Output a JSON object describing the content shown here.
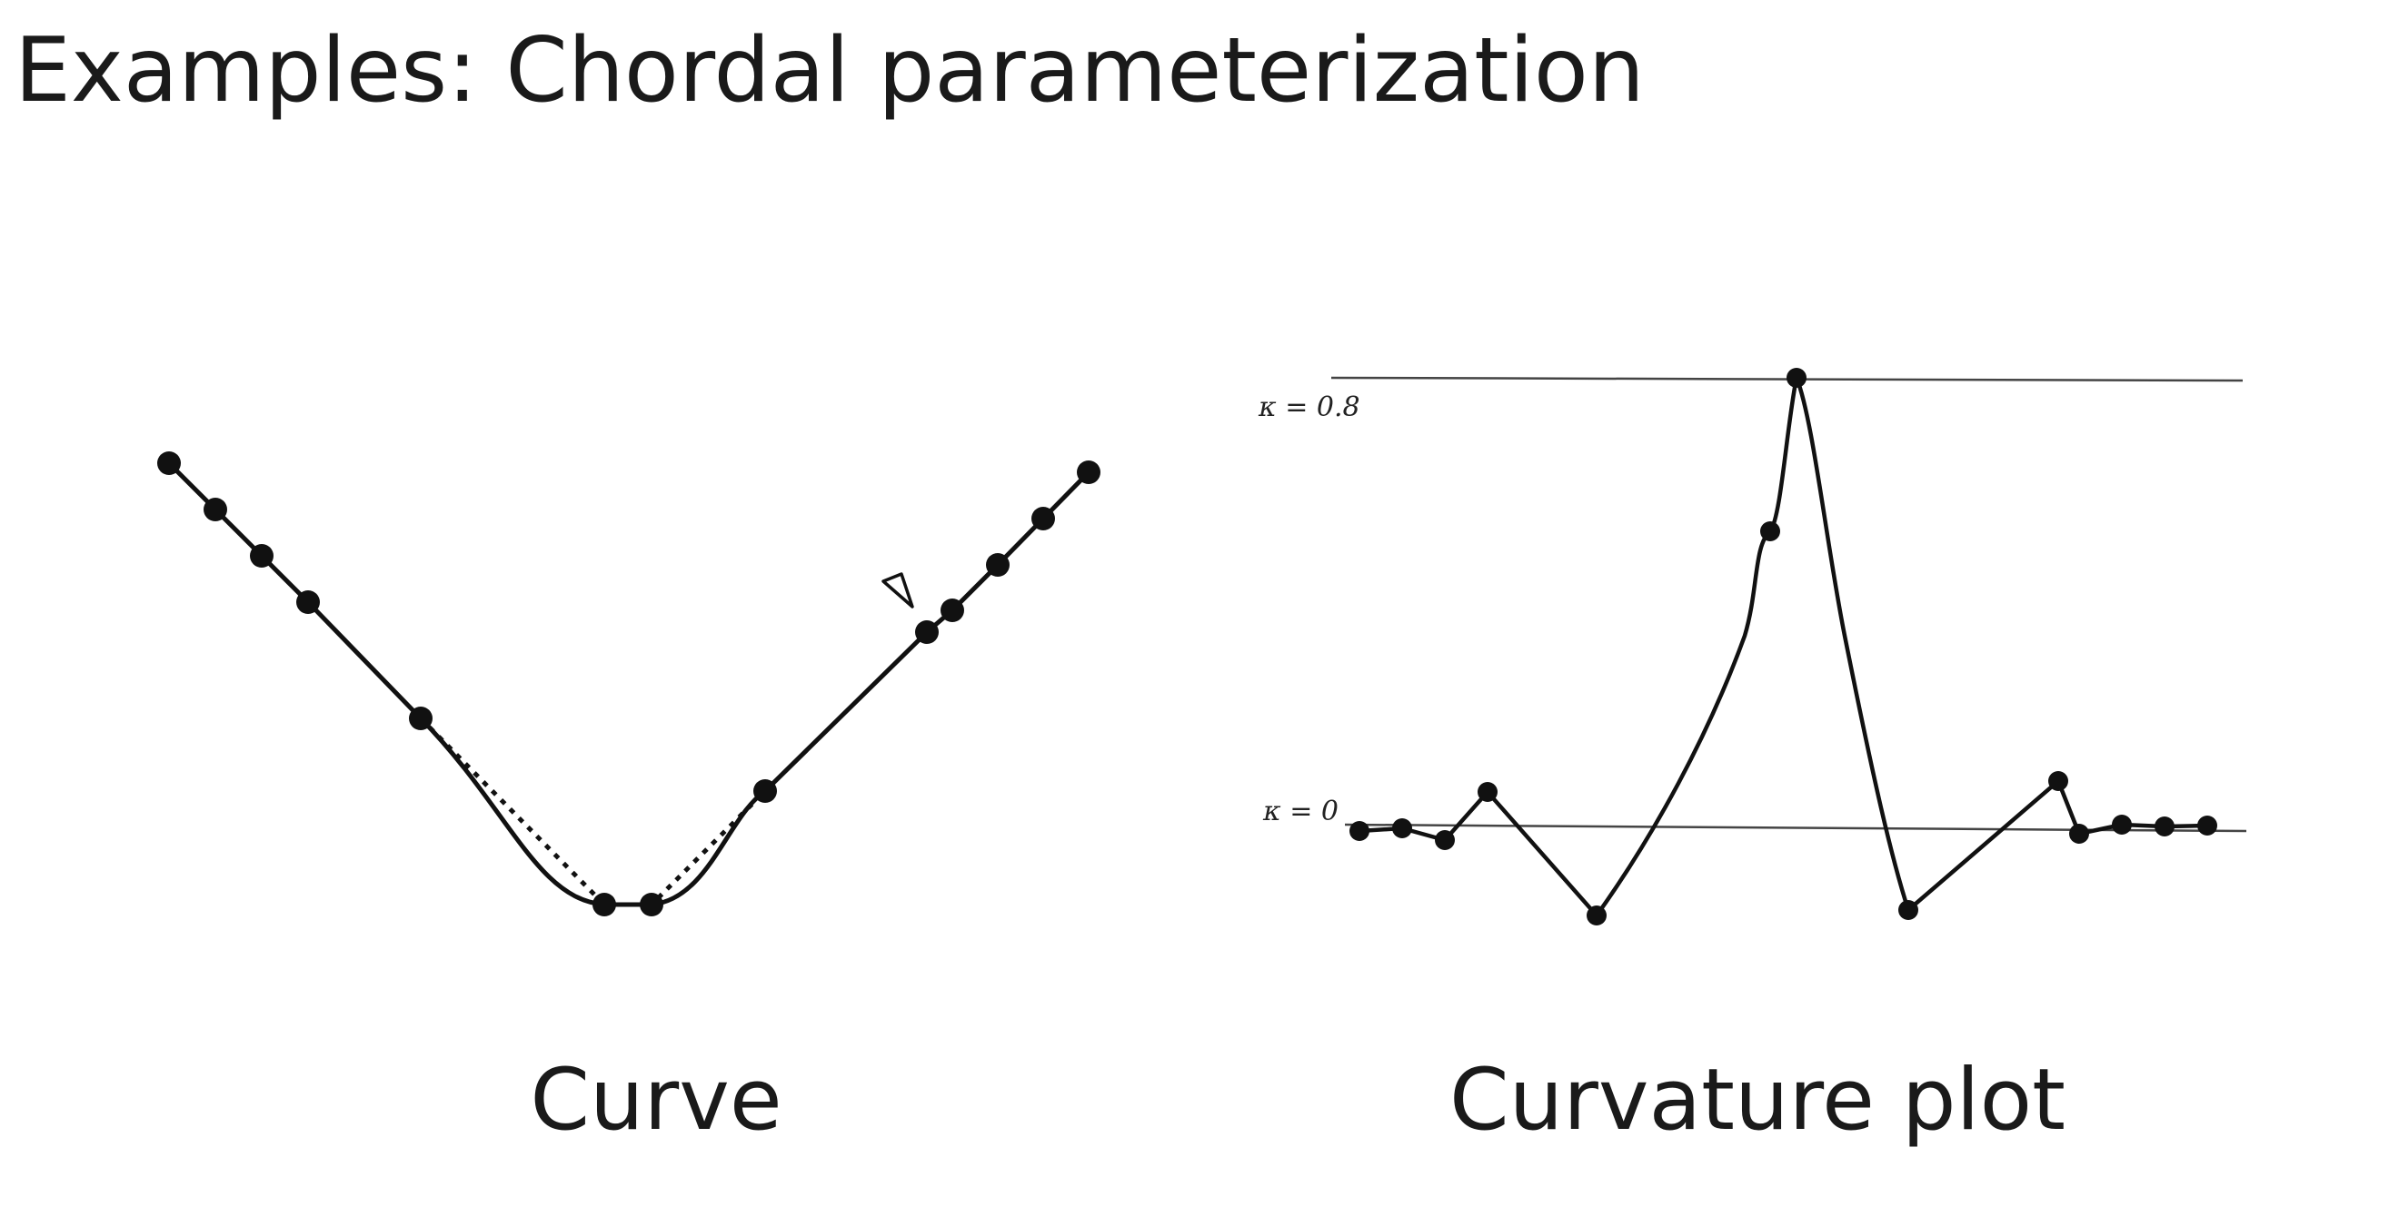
{
  "slide": {
    "title": "Examples: Chordal parameterization"
  },
  "curve_panel": {
    "caption": "Curve",
    "marker_icon": "triangle-marker-icon",
    "ink_color": "#111111"
  },
  "curvature_panel": {
    "caption": "Curvature plot",
    "upper_line_label": "κ = 0.8",
    "lower_line_label": "κ = 0",
    "ink_color": "#111111"
  }
}
